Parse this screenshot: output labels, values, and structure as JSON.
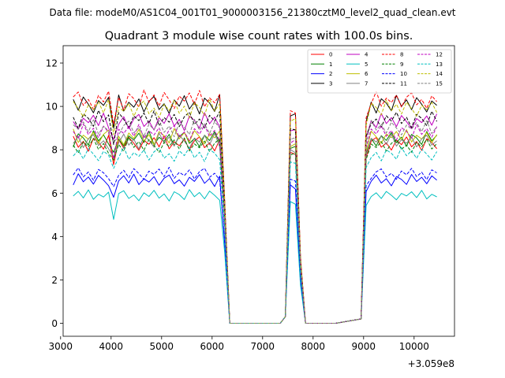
{
  "chart_data": {
    "type": "line",
    "suptitle": "Data file: modeM0/AS1C04_001T01_9000003156_21380cztM0_level2_quad_clean.evt",
    "title": "Quadrant 3 module wise count rates with 100.0s bins.",
    "xlabel": "",
    "ylabel": "",
    "x_offset_label": "+3.059e8",
    "xlim": [
      3050,
      10800
    ],
    "ylim": [
      -0.6,
      12.8
    ],
    "xticks": [
      3000,
      4000,
      5000,
      6000,
      7000,
      8000,
      9000,
      10000
    ],
    "xtick_labels": [
      "3000",
      "4000",
      "5000",
      "6000",
      "7000",
      "8000",
      "9000",
      "10000"
    ],
    "yticks": [
      0,
      2,
      4,
      6,
      8,
      10,
      12
    ],
    "ytick_labels": [
      "0",
      "2",
      "4",
      "6",
      "8",
      "10",
      "12"
    ],
    "legend": {
      "placement": "top-right",
      "columns": 4,
      "entries": [
        "0",
        "1",
        "2",
        "3",
        "4",
        "5",
        "6",
        "7",
        "8",
        "9",
        "10",
        "11",
        "12",
        "13",
        "14",
        "15"
      ]
    },
    "segments": [
      {
        "start": 3250,
        "step": 100,
        "count": 31
      },
      {
        "start": 6350,
        "step": 100,
        "count": 11
      },
      {
        "start": 7450,
        "step": 100,
        "count": 4
      },
      {
        "start": 7850,
        "step": 100,
        "count": 7
      },
      {
        "start": 8950,
        "step": 100,
        "count": 16
      }
    ],
    "series": [
      {
        "name": "0",
        "color": "#ff0000",
        "dash": "solid",
        "level": 8.3
      },
      {
        "name": "1",
        "color": "#008000",
        "dash": "solid",
        "level": 8.5
      },
      {
        "name": "2",
        "color": "#0000ff",
        "dash": "solid",
        "level": 6.6
      },
      {
        "name": "3",
        "color": "#000000",
        "dash": "solid",
        "level": 10.1
      },
      {
        "name": "4",
        "color": "#bf00bf",
        "dash": "solid",
        "level": 9.3
      },
      {
        "name": "5",
        "color": "#00bfbf",
        "dash": "solid",
        "level": 5.9
      },
      {
        "name": "6",
        "color": "#bfbf00",
        "dash": "solid",
        "level": 8.6
      },
      {
        "name": "7",
        "color": "#808080",
        "dash": "solid",
        "level": 8.4
      },
      {
        "name": "8",
        "color": "#ff0000",
        "dash": "dashed",
        "level": 10.3
      },
      {
        "name": "9",
        "color": "#008000",
        "dash": "dashed",
        "level": 8.2
      },
      {
        "name": "10",
        "color": "#0000ff",
        "dash": "dashed",
        "level": 6.9
      },
      {
        "name": "11",
        "color": "#000000",
        "dash": "dashed",
        "level": 9.4
      },
      {
        "name": "12",
        "color": "#bf00bf",
        "dash": "dashed",
        "level": 8.8
      },
      {
        "name": "13",
        "color": "#00bfbf",
        "dash": "dashed",
        "level": 7.8
      },
      {
        "name": "14",
        "color": "#bfbf00",
        "dash": "dashed",
        "level": 9.9
      },
      {
        "name": "15",
        "color": "#808080",
        "dash": "dashed",
        "level": 9.0
      }
    ],
    "noise": [
      0.35,
      -0.2,
      0.1,
      -0.4,
      0.25,
      0.05,
      -0.3,
      0.4,
      -0.1,
      0.2,
      -0.25,
      0.3,
      0.0,
      -0.35,
      0.15,
      -0.05,
      0.28,
      -0.18,
      0.38,
      -0.28,
      0.08,
      -0.12,
      0.22,
      -0.32,
      0.12,
      0.32,
      -0.22,
      0.02,
      -0.38,
      0.18,
      -0.08
    ]
  }
}
